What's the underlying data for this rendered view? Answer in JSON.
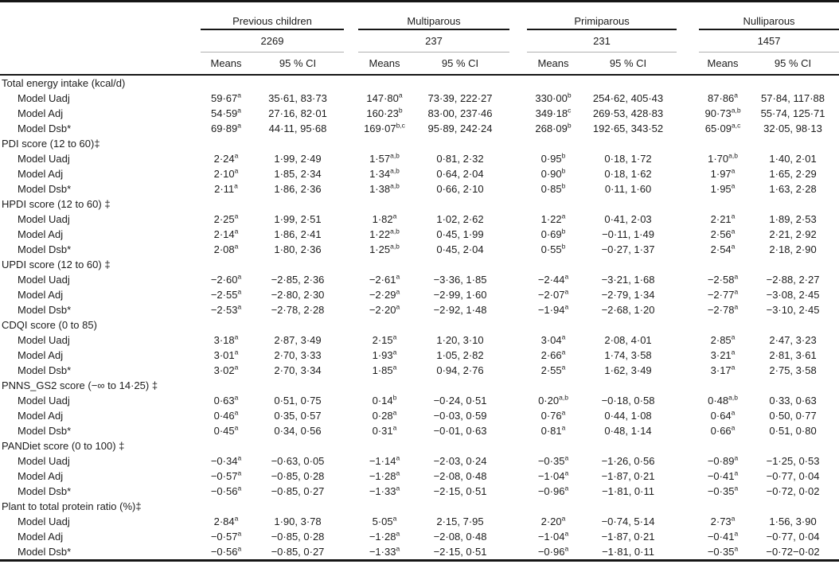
{
  "table": {
    "groups": [
      {
        "label": "Previous children",
        "n": "2269"
      },
      {
        "label": "Multiparous",
        "n": "237"
      },
      {
        "label": "Primiparous",
        "n": "231"
      },
      {
        "label": "Nulliparous",
        "n": "1457"
      }
    ],
    "col_headers": {
      "means": "Means",
      "ci": "95 % CI"
    },
    "sections": [
      {
        "title": "Total energy intake (kcal/d)",
        "rows": [
          {
            "label": "Model Uadj",
            "cells": [
              {
                "mean": "59·67",
                "sup": "a",
                "ci": "35·61, 83·73"
              },
              {
                "mean": "147·80",
                "sup": "a",
                "ci": "73·39, 222·27"
              },
              {
                "mean": "330·00",
                "sup": "b",
                "ci": "254·62, 405·43"
              },
              {
                "mean": "87·86",
                "sup": "a",
                "ci": "57·84, 117·88"
              }
            ]
          },
          {
            "label": "Model Adj",
            "cells": [
              {
                "mean": "54·59",
                "sup": "a",
                "ci": "27·16, 82·01"
              },
              {
                "mean": "160·23",
                "sup": "b",
                "ci": "83·00, 237·46"
              },
              {
                "mean": "349·18",
                "sup": "c",
                "ci": "269·53, 428·83"
              },
              {
                "mean": "90·73",
                "sup": "a,b",
                "ci": "55·74, 125·71"
              }
            ]
          },
          {
            "label": "Model Dsb*",
            "cells": [
              {
                "mean": "69·89",
                "sup": "a",
                "ci": "44·11, 95·68"
              },
              {
                "mean": "169·07",
                "sup": "b,c",
                "ci": "95·89, 242·24"
              },
              {
                "mean": "268·09",
                "sup": "b",
                "ci": "192·65, 343·52"
              },
              {
                "mean": "65·09",
                "sup": "a,c",
                "ci": "32·05, 98·13"
              }
            ]
          }
        ]
      },
      {
        "title": "PDI score (12 to 60)‡",
        "rows": [
          {
            "label": "Model Uadj",
            "cells": [
              {
                "mean": "2·24",
                "sup": "a",
                "ci": "1·99, 2·49"
              },
              {
                "mean": "1·57",
                "sup": "a,b",
                "ci": "0·81, 2·32"
              },
              {
                "mean": "0·95",
                "sup": "b",
                "ci": "0·18, 1·72"
              },
              {
                "mean": "1·70",
                "sup": "a,b",
                "ci": "1·40, 2·01"
              }
            ]
          },
          {
            "label": "Model Adj",
            "cells": [
              {
                "mean": "2·10",
                "sup": "a",
                "ci": "1·85, 2·34"
              },
              {
                "mean": "1·34",
                "sup": "a,b",
                "ci": "0·64, 2·04"
              },
              {
                "mean": "0·90",
                "sup": "b",
                "ci": "0·18, 1·62"
              },
              {
                "mean": "1·97",
                "sup": "a",
                "ci": "1·65, 2·29"
              }
            ]
          },
          {
            "label": "Model Dsb*",
            "cells": [
              {
                "mean": "2·11",
                "sup": "a",
                "ci": "1·86, 2·36"
              },
              {
                "mean": "1·38",
                "sup": "a,b",
                "ci": "0·66, 2·10"
              },
              {
                "mean": "0·85",
                "sup": "b",
                "ci": "0·11, 1·60"
              },
              {
                "mean": "1·95",
                "sup": "a",
                "ci": "1·63, 2·28"
              }
            ]
          }
        ]
      },
      {
        "title": "HPDI score (12 to 60) ‡",
        "rows": [
          {
            "label": "Model Uadj",
            "cells": [
              {
                "mean": "2·25",
                "sup": "a",
                "ci": "1·99, 2·51"
              },
              {
                "mean": "1·82",
                "sup": "a",
                "ci": "1·02, 2·62"
              },
              {
                "mean": "1·22",
                "sup": "a",
                "ci": "0·41, 2·03"
              },
              {
                "mean": "2·21",
                "sup": "a",
                "ci": "1·89, 2·53"
              }
            ]
          },
          {
            "label": "Model Adj",
            "cells": [
              {
                "mean": "2·14",
                "sup": "a",
                "ci": "1·86, 2·41"
              },
              {
                "mean": "1·22",
                "sup": "a,b",
                "ci": "0·45, 1·99"
              },
              {
                "mean": "0·69",
                "sup": "b",
                "ci": "−0·11, 1·49"
              },
              {
                "mean": "2·56",
                "sup": "a",
                "ci": "2·21, 2·92"
              }
            ]
          },
          {
            "label": "Model Dsb*",
            "cells": [
              {
                "mean": "2·08",
                "sup": "a",
                "ci": "1·80, 2·36"
              },
              {
                "mean": "1·25",
                "sup": "a,b",
                "ci": "0·45, 2·04"
              },
              {
                "mean": "0·55",
                "sup": "b",
                "ci": "−0·27, 1·37"
              },
              {
                "mean": "2·54",
                "sup": "a",
                "ci": "2·18, 2·90"
              }
            ]
          }
        ]
      },
      {
        "title": "UPDI score (12 to 60) ‡",
        "rows": [
          {
            "label": "Model Uadj",
            "cells": [
              {
                "mean": "−2·60",
                "sup": "a",
                "ci": "−2·85, 2·36"
              },
              {
                "mean": "−2·61",
                "sup": "a",
                "ci": "−3·36, 1·85"
              },
              {
                "mean": "−2·44",
                "sup": "a",
                "ci": "−3·21, 1·68"
              },
              {
                "mean": "−2·58",
                "sup": "a",
                "ci": "−2·88, 2·27"
              }
            ]
          },
          {
            "label": "Model Adj",
            "cells": [
              {
                "mean": "−2·55",
                "sup": "a",
                "ci": "−2·80, 2·30"
              },
              {
                "mean": "−2·29",
                "sup": "a",
                "ci": "−2·99, 1·60"
              },
              {
                "mean": "−2·07",
                "sup": "a",
                "ci": "−2·79, 1·34"
              },
              {
                "mean": "−2·77",
                "sup": "a",
                "ci": "−3·08, 2·45"
              }
            ]
          },
          {
            "label": "Model Dsb*",
            "cells": [
              {
                "mean": "−2·53",
                "sup": "a",
                "ci": "−2·78, 2·28"
              },
              {
                "mean": "−2·20",
                "sup": "a",
                "ci": "−2·92, 1·48"
              },
              {
                "mean": "−1·94",
                "sup": "a",
                "ci": "−2·68, 1·20"
              },
              {
                "mean": "−2·78",
                "sup": "a",
                "ci": "−3·10, 2·45"
              }
            ]
          }
        ]
      },
      {
        "title": "CDQI score (0 to 85)",
        "rows": [
          {
            "label": "Model Uadj",
            "cells": [
              {
                "mean": "3·18",
                "sup": "a",
                "ci": "2·87, 3·49"
              },
              {
                "mean": "2·15",
                "sup": "a",
                "ci": "1·20, 3·10"
              },
              {
                "mean": "3·04",
                "sup": "a",
                "ci": "2·08, 4·01"
              },
              {
                "mean": "2·85",
                "sup": "a",
                "ci": "2·47, 3·23"
              }
            ]
          },
          {
            "label": "Model Adj",
            "cells": [
              {
                "mean": "3·01",
                "sup": "a",
                "ci": "2·70, 3·33"
              },
              {
                "mean": "1·93",
                "sup": "a",
                "ci": "1·05, 2·82"
              },
              {
                "mean": "2·66",
                "sup": "a",
                "ci": "1·74, 3·58"
              },
              {
                "mean": "3·21",
                "sup": "a",
                "ci": "2·81, 3·61"
              }
            ]
          },
          {
            "label": "Model Dsb*",
            "cells": [
              {
                "mean": "3·02",
                "sup": "a",
                "ci": "2·70, 3·34"
              },
              {
                "mean": "1·85",
                "sup": "a",
                "ci": "0·94, 2·76"
              },
              {
                "mean": "2·55",
                "sup": "a",
                "ci": "1·62, 3·49"
              },
              {
                "mean": "3·17",
                "sup": "a",
                "ci": "2·75, 3·58"
              }
            ]
          }
        ]
      },
      {
        "title": "PNNS_GS2 score (−∞ to 14·25) ‡",
        "rows": [
          {
            "label": "Model Uadj",
            "cells": [
              {
                "mean": "0·63",
                "sup": "a",
                "ci": "0·51, 0·75"
              },
              {
                "mean": "0·14",
                "sup": "b",
                "ci": "−0·24, 0·51"
              },
              {
                "mean": "0·20",
                "sup": "a,b",
                "ci": "−0·18, 0·58"
              },
              {
                "mean": "0·48",
                "sup": "a,b",
                "ci": "0·33, 0·63"
              }
            ]
          },
          {
            "label": "Model Adj",
            "cells": [
              {
                "mean": "0·46",
                "sup": "a",
                "ci": "0·35, 0·57"
              },
              {
                "mean": "0·28",
                "sup": "a",
                "ci": "−0·03, 0·59"
              },
              {
                "mean": "0·76",
                "sup": "a",
                "ci": "0·44, 1·08"
              },
              {
                "mean": "0·64",
                "sup": "a",
                "ci": "0·50, 0·77"
              }
            ]
          },
          {
            "label": "Model Dsb*",
            "cells": [
              {
                "mean": "0·45",
                "sup": "a",
                "ci": "0·34, 0·56"
              },
              {
                "mean": "0·31",
                "sup": "a",
                "ci": "−0·01, 0·63"
              },
              {
                "mean": "0·81",
                "sup": "a",
                "ci": "0·48, 1·14"
              },
              {
                "mean": "0·66",
                "sup": "a",
                "ci": "0·51, 0·80"
              }
            ]
          }
        ]
      },
      {
        "title": "PANDiet score (0 to 100) ‡",
        "rows": [
          {
            "label": "Model Uadj",
            "cells": [
              {
                "mean": "−0·34",
                "sup": "a",
                "ci": "−0·63, 0·05"
              },
              {
                "mean": "−1·14",
                "sup": "a",
                "ci": "−2·03, 0·24"
              },
              {
                "mean": "−0·35",
                "sup": "a",
                "ci": "−1·26, 0·56"
              },
              {
                "mean": "−0·89",
                "sup": "a",
                "ci": "−1·25, 0·53"
              }
            ]
          },
          {
            "label": "Model Adj",
            "cells": [
              {
                "mean": "−0·57",
                "sup": "a",
                "ci": "−0·85, 0·28"
              },
              {
                "mean": "−1·28",
                "sup": "a",
                "ci": "−2·08, 0·48"
              },
              {
                "mean": "−1·04",
                "sup": "a",
                "ci": "−1·87, 0·21"
              },
              {
                "mean": "−0·41",
                "sup": "a",
                "ci": "−0·77, 0·04"
              }
            ]
          },
          {
            "label": "Model Dsb*",
            "cells": [
              {
                "mean": "−0·56",
                "sup": "a",
                "ci": "−0·85, 0·27"
              },
              {
                "mean": "−1·33",
                "sup": "a",
                "ci": "−2·15, 0·51"
              },
              {
                "mean": "−0·96",
                "sup": "a",
                "ci": "−1·81, 0·11"
              },
              {
                "mean": "−0·35",
                "sup": "a",
                "ci": "−0·72, 0·02"
              }
            ]
          }
        ]
      },
      {
        "title": "Plant to total protein ratio (%)‡",
        "rows": [
          {
            "label": "Model Uadj",
            "cells": [
              {
                "mean": "2·84",
                "sup": "a",
                "ci": "1·90, 3·78"
              },
              {
                "mean": "5·05",
                "sup": "a",
                "ci": "2·15, 7·95"
              },
              {
                "mean": "2·20",
                "sup": "a",
                "ci": "−0·74, 5·14"
              },
              {
                "mean": "2·73",
                "sup": "a",
                "ci": "1·56, 3·90"
              }
            ]
          },
          {
            "label": "Model Adj",
            "cells": [
              {
                "mean": "−0·57",
                "sup": "a",
                "ci": "−0·85, 0·28"
              },
              {
                "mean": "−1·28",
                "sup": "a",
                "ci": "−2·08, 0·48"
              },
              {
                "mean": "−1·04",
                "sup": "a",
                "ci": "−1·87, 0·21"
              },
              {
                "mean": "−0·41",
                "sup": "a",
                "ci": "−0·77, 0·04"
              }
            ]
          },
          {
            "label": "Model Dsb*",
            "cells": [
              {
                "mean": "−0·56",
                "sup": "a",
                "ci": "−0·85, 0·27"
              },
              {
                "mean": "−1·33",
                "sup": "a",
                "ci": "−2·15, 0·51"
              },
              {
                "mean": "−0·96",
                "sup": "a",
                "ci": "−1·81, 0·11"
              },
              {
                "mean": "−0·35",
                "sup": "a",
                "ci": "−0·72−0·02"
              }
            ]
          }
        ]
      }
    ]
  }
}
